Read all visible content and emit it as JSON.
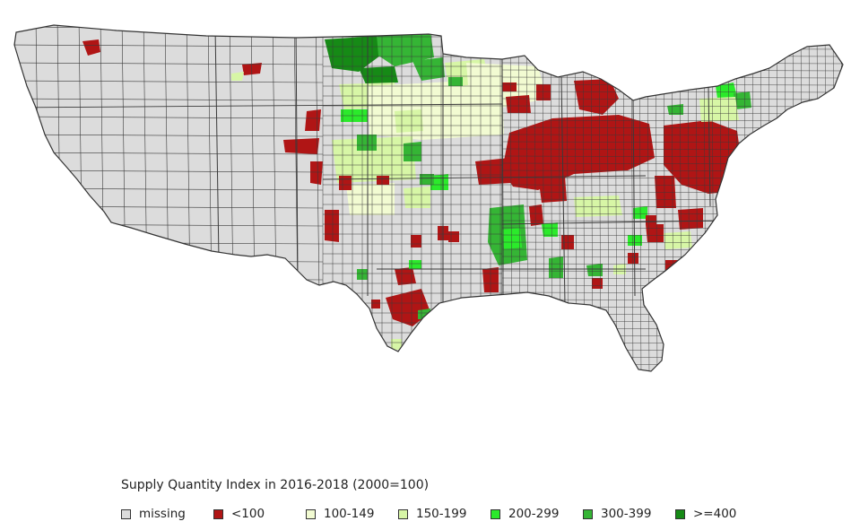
{
  "legend": {
    "title": "Supply Quantity Index in 2016-2018 (2000=100)",
    "items": [
      {
        "label": "missing",
        "color": "#dcdcdc"
      },
      {
        "label": "<100",
        "color": "#b01515"
      },
      {
        "label": "100-149",
        "color": "#f2fbd2"
      },
      {
        "label": "150-199",
        "color": "#d7f6a6"
      },
      {
        "label": "200-299",
        "color": "#2bea2b"
      },
      {
        "label": "300-399",
        "color": "#35b535"
      },
      {
        "label": ">=400",
        "color": "#168a16"
      }
    ]
  },
  "map": {
    "region": "contiguous United States, by county",
    "border_color": "#3a3a3a",
    "background": "#ffffff"
  }
}
